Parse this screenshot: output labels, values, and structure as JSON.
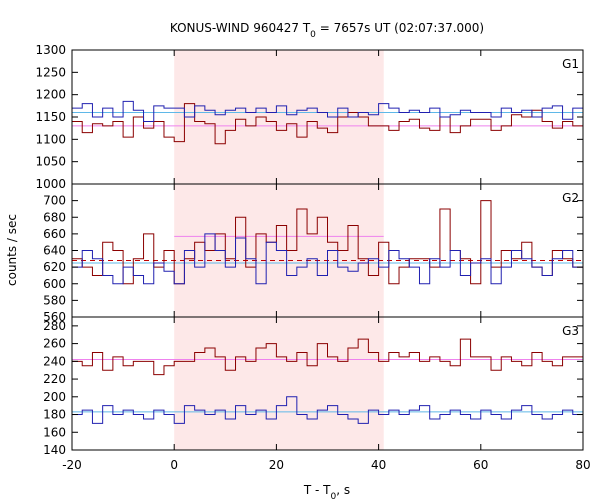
{
  "chart_data": {
    "type": "line",
    "title_parts": [
      "KONUS-WIND 960427 T",
      "0",
      " = 7657s UT (02:07:37.000)"
    ],
    "xlabel_parts": [
      "T - T",
      "0",
      ", s"
    ],
    "ylabel": "counts / sec",
    "xlim": [
      -20,
      80
    ],
    "x_ticks": [
      "-20",
      "0",
      "20",
      "40",
      "60",
      "80"
    ],
    "highlight_interval": [
      0,
      41
    ],
    "colors": {
      "red_series": "#8b0000",
      "blue_series": "#2020b0",
      "red_bg_level": "#ee82ee",
      "blue_bg_level": "#5fb8e8",
      "highlight": "#fde8e8",
      "g2_dashed": "#c00000"
    },
    "panels": [
      {
        "name": "G1",
        "ylim": [
          1000,
          1300
        ],
        "y_ticks": [
          "1000",
          "1050",
          "1100",
          "1150",
          "1200",
          "1250",
          "1300"
        ],
        "hide_bottom_tick": true,
        "bin_start": -20,
        "bin_width": 2,
        "series": [
          {
            "color_key": "red_series",
            "values": [
              1140,
              1115,
              1135,
              1130,
              1140,
              1105,
              1150,
              1125,
              1140,
              1105,
              1095,
              1180,
              1140,
              1135,
              1090,
              1120,
              1145,
              1130,
              1150,
              1140,
              1120,
              1135,
              1105,
              1140,
              1125,
              1115,
              1150,
              1160,
              1150,
              1130,
              1130,
              1120,
              1140,
              1145,
              1125,
              1120,
              1150,
              1115,
              1130,
              1145,
              1145,
              1120,
              1130,
              1155,
              1150,
              1165,
              1140,
              1125,
              1140,
              1130
            ]
          },
          {
            "color_key": "blue_series",
            "values": [
              1170,
              1180,
              1150,
              1170,
              1150,
              1185,
              1165,
              1140,
              1175,
              1170,
              1170,
              1150,
              1175,
              1165,
              1155,
              1165,
              1170,
              1160,
              1170,
              1160,
              1175,
              1155,
              1165,
              1170,
              1160,
              1150,
              1170,
              1150,
              1160,
              1155,
              1180,
              1170,
              1160,
              1165,
              1160,
              1170,
              1150,
              1155,
              1165,
              1160,
              1160,
              1150,
              1170,
              1160,
              1165,
              1150,
              1170,
              1175,
              1145,
              1170
            ]
          }
        ],
        "bg_levels": [
          {
            "color_key": "blue_bg_level",
            "value": 1160
          },
          {
            "color_key": "red_bg_level",
            "value": 1130
          }
        ],
        "inner_levels": []
      },
      {
        "name": "G2",
        "ylim": [
          560,
          720
        ],
        "y_ticks": [
          "560",
          "580",
          "600",
          "620",
          "640",
          "660",
          "680",
          "700"
        ],
        "hide_bottom_tick": false,
        "bin_start": -20,
        "bin_width": 2,
        "series": [
          {
            "color_key": "red_series",
            "values": [
              630,
              620,
              610,
              650,
              640,
              600,
              630,
              660,
              620,
              640,
              600,
              630,
              650,
              640,
              660,
              630,
              680,
              620,
              660,
              650,
              670,
              640,
              690,
              660,
              680,
              650,
              640,
              670,
              630,
              610,
              650,
              600,
              620,
              630,
              630,
              620,
              690,
              640,
              630,
              600,
              700,
              620,
              640,
              630,
              650,
              620,
              610,
              640,
              630,
              620
            ]
          },
          {
            "color_key": "blue_series",
            "values": [
              620,
              640,
              630,
              610,
              600,
              620,
              610,
              600,
              625,
              615,
              600,
              640,
              620,
              660,
              640,
              620,
              655,
              630,
              600,
              650,
              640,
              610,
              620,
              630,
              610,
              640,
              620,
              615,
              625,
              630,
              620,
              640,
              630,
              620,
              600,
              630,
              620,
              640,
              610,
              625,
              630,
              600,
              620,
              640,
              630,
              620,
              610,
              630,
              640,
              620
            ]
          }
        ],
        "bg_levels": [
          {
            "color_key": "blue_bg_level",
            "value": 625
          }
        ],
        "inner_levels": [
          {
            "color_key": "red_bg_level",
            "value": 657,
            "x_range": [
              0,
              41
            ]
          },
          {
            "color_key": "g2_dashed",
            "value": 628,
            "x_range": [
              -20,
              80
            ],
            "dashed": true
          }
        ]
      },
      {
        "name": "G3",
        "ylim": [
          140,
          290
        ],
        "y_ticks": [
          "140",
          "160",
          "180",
          "200",
          "220",
          "240",
          "260",
          "280"
        ],
        "hide_bottom_tick": false,
        "bin_start": -20,
        "bin_width": 2,
        "series": [
          {
            "color_key": "red_series",
            "values": [
              240,
              235,
              250,
              230,
              245,
              235,
              240,
              240,
              225,
              235,
              240,
              240,
              250,
              255,
              245,
              230,
              245,
              240,
              255,
              260,
              245,
              240,
              250,
              235,
              260,
              245,
              240,
              255,
              265,
              250,
              240,
              250,
              245,
              250,
              240,
              245,
              240,
              235,
              265,
              245,
              245,
              230,
              245,
              240,
              235,
              250,
              240,
              235,
              245,
              245
            ]
          },
          {
            "color_key": "blue_series",
            "values": [
              180,
              185,
              170,
              190,
              180,
              185,
              180,
              175,
              185,
              180,
              170,
              190,
              185,
              180,
              185,
              175,
              190,
              180,
              185,
              175,
              190,
              200,
              180,
              175,
              185,
              190,
              180,
              175,
              170,
              185,
              180,
              185,
              180,
              185,
              190,
              175,
              180,
              185,
              180,
              175,
              185,
              180,
              175,
              185,
              190,
              180,
              175,
              180,
              185,
              180
            ]
          }
        ],
        "bg_levels": [
          {
            "color_key": "red_bg_level",
            "value": 242
          },
          {
            "color_key": "blue_bg_level",
            "value": 183
          }
        ],
        "inner_levels": []
      }
    ]
  }
}
